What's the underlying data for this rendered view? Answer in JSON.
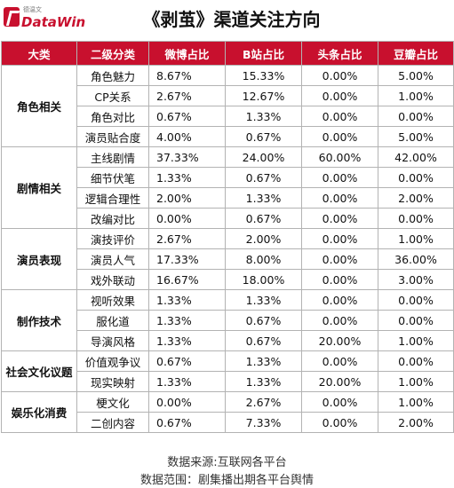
{
  "logo": {
    "cn": "德温文",
    "en": "DataWin"
  },
  "title": "《剥茧》渠道关注方向",
  "headers": [
    "大类",
    "二级分类",
    "微博占比",
    "B站占比",
    "头条占比",
    "豆瓣占比"
  ],
  "groups": [
    {
      "category": "角色相关",
      "rows": [
        {
          "sub": "角色魅力",
          "weibo": "8.67%",
          "bili": "15.33%",
          "toutiao": "0.00%",
          "douban": "5.00%"
        },
        {
          "sub": "CP关系",
          "weibo": "2.67%",
          "bili": "12.67%",
          "toutiao": "0.00%",
          "douban": "1.00%"
        },
        {
          "sub": "角色对比",
          "weibo": "0.67%",
          "bili": "1.33%",
          "toutiao": "0.00%",
          "douban": "0.00%"
        },
        {
          "sub": "演员贴合度",
          "weibo": "4.00%",
          "bili": "0.67%",
          "toutiao": "0.00%",
          "douban": "5.00%"
        }
      ]
    },
    {
      "category": "剧情相关",
      "rows": [
        {
          "sub": "主线剧情",
          "weibo": "37.33%",
          "bili": "24.00%",
          "toutiao": "60.00%",
          "douban": "42.00%"
        },
        {
          "sub": "细节伏笔",
          "weibo": "1.33%",
          "bili": "0.67%",
          "toutiao": "0.00%",
          "douban": "0.00%"
        },
        {
          "sub": "逻辑合理性",
          "weibo": "2.00%",
          "bili": "1.33%",
          "toutiao": "0.00%",
          "douban": "2.00%"
        },
        {
          "sub": "改编对比",
          "weibo": "0.00%",
          "bili": "0.67%",
          "toutiao": "0.00%",
          "douban": "0.00%"
        }
      ]
    },
    {
      "category": "演员表现",
      "rows": [
        {
          "sub": "演技评价",
          "weibo": "2.67%",
          "bili": "2.00%",
          "toutiao": "0.00%",
          "douban": "1.00%"
        },
        {
          "sub": "演员人气",
          "weibo": "17.33%",
          "bili": "8.00%",
          "toutiao": "0.00%",
          "douban": "36.00%"
        },
        {
          "sub": "戏外联动",
          "weibo": "16.67%",
          "bili": "18.00%",
          "toutiao": "0.00%",
          "douban": "3.00%"
        }
      ]
    },
    {
      "category": "制作技术",
      "rows": [
        {
          "sub": "视听效果",
          "weibo": "1.33%",
          "bili": "1.33%",
          "toutiao": "0.00%",
          "douban": "0.00%"
        },
        {
          "sub": "服化道",
          "weibo": "1.33%",
          "bili": "0.67%",
          "toutiao": "0.00%",
          "douban": "0.00%"
        },
        {
          "sub": "导演风格",
          "weibo": "1.33%",
          "bili": "0.67%",
          "toutiao": "20.00%",
          "douban": "1.00%"
        }
      ]
    },
    {
      "category": "社会文化议题",
      "rows": [
        {
          "sub": "价值观争议",
          "weibo": "0.67%",
          "bili": "1.33%",
          "toutiao": "0.00%",
          "douban": "0.00%"
        },
        {
          "sub": "现实映射",
          "weibo": "1.33%",
          "bili": "1.33%",
          "toutiao": "20.00%",
          "douban": "1.00%"
        }
      ]
    },
    {
      "category": "娱乐化消费",
      "rows": [
        {
          "sub": "梗文化",
          "weibo": "0.00%",
          "bili": "2.67%",
          "toutiao": "0.00%",
          "douban": "1.00%"
        },
        {
          "sub": "二创内容",
          "weibo": "0.67%",
          "bili": "7.33%",
          "toutiao": "0.00%",
          "douban": "2.00%"
        }
      ]
    }
  ],
  "footer": {
    "source": "数据来源:互联网各平台",
    "scope": "数据范围：剧集播出期各平台舆情"
  },
  "colors": {
    "header_bg": "#c8102e",
    "border": "#b3b3b3"
  }
}
